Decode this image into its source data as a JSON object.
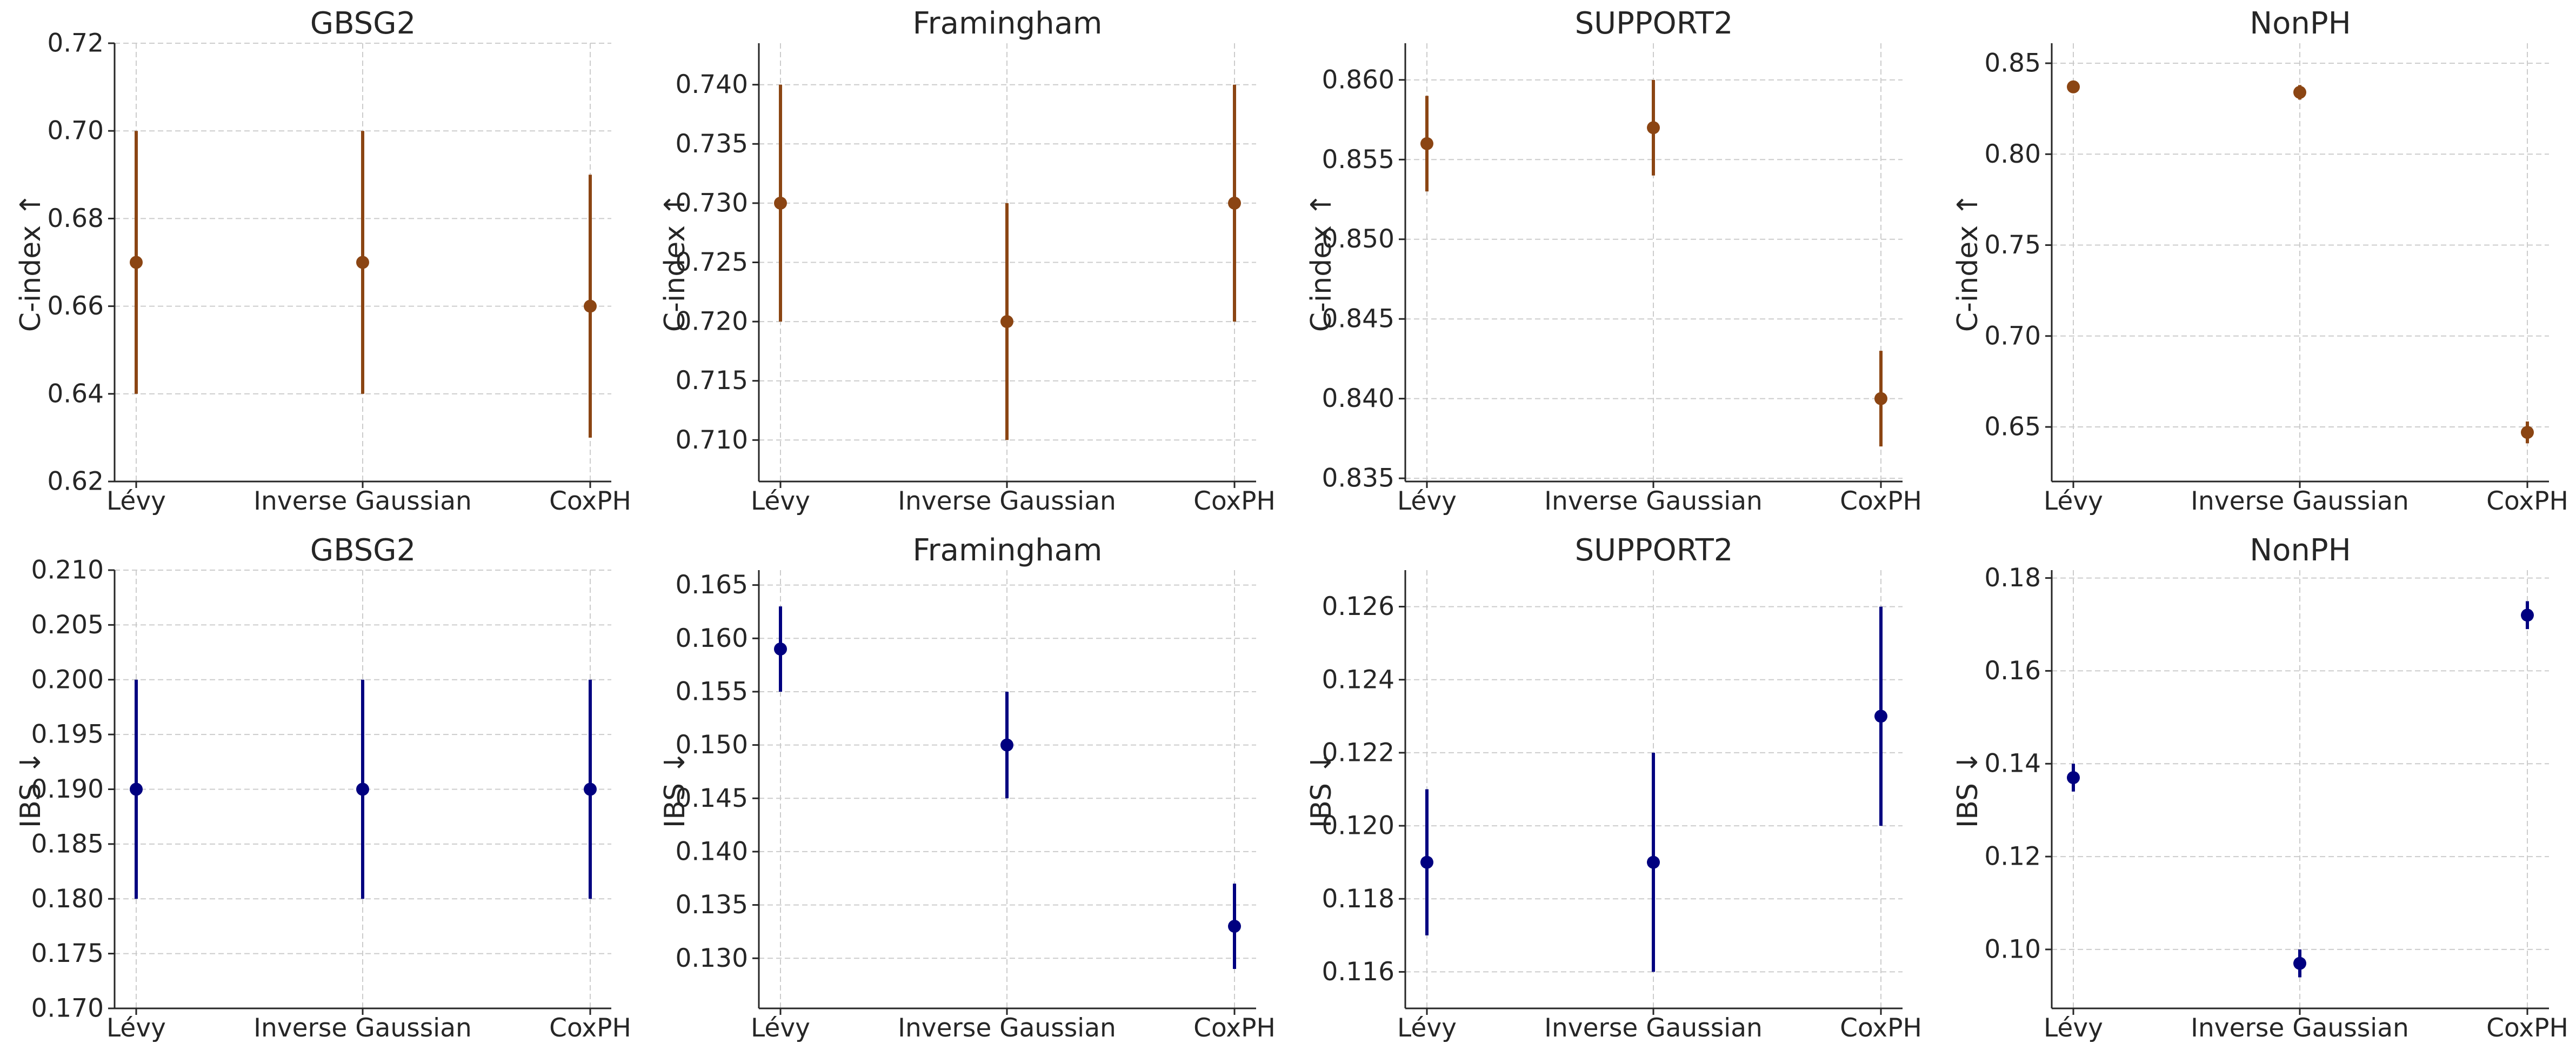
{
  "colors": {
    "cindex": "#8B4513",
    "ibs": "#000080",
    "grid": "#cccccc",
    "axis": "#262626"
  },
  "chart_data": [
    {
      "id": "cindex-gbsg2",
      "type": "errorbar",
      "title": "GBSG2",
      "ylabel": "C-index ↑",
      "xlabel": "",
      "series_color": "cindex",
      "categories": [
        "Lévy",
        "Inverse Gaussian",
        "CoxPH"
      ],
      "values": [
        0.67,
        0.67,
        0.66
      ],
      "lower": [
        0.64,
        0.64,
        0.63
      ],
      "upper": [
        0.7,
        0.7,
        0.69
      ],
      "ylim": [
        0.62,
        0.72
      ],
      "yticks": [
        "0.62",
        "0.64",
        "0.66",
        "0.68",
        "0.70",
        "0.72"
      ],
      "grid": true
    },
    {
      "id": "cindex-framingham",
      "type": "errorbar",
      "title": "Framingham",
      "ylabel": "C-index ↑",
      "xlabel": "",
      "series_color": "cindex",
      "categories": [
        "Lévy",
        "Inverse Gaussian",
        "CoxPH"
      ],
      "values": [
        0.73,
        0.72,
        0.73
      ],
      "lower": [
        0.72,
        0.71,
        0.72
      ],
      "upper": [
        0.74,
        0.73,
        0.74
      ],
      "ylim": [
        0.7065,
        0.7435
      ],
      "yticks": [
        "0.710",
        "0.715",
        "0.720",
        "0.725",
        "0.730",
        "0.735",
        "0.740"
      ],
      "grid": true
    },
    {
      "id": "cindex-support2",
      "type": "errorbar",
      "title": "SUPPORT2",
      "ylabel": "C-index ↑",
      "xlabel": "",
      "series_color": "cindex",
      "categories": [
        "Lévy",
        "Inverse Gaussian",
        "CoxPH"
      ],
      "values": [
        0.856,
        0.857,
        0.84
      ],
      "lower": [
        0.853,
        0.854,
        0.837
      ],
      "upper": [
        0.859,
        0.86,
        0.843
      ],
      "ylim": [
        0.8348,
        0.8623
      ],
      "yticks": [
        "0.835",
        "0.840",
        "0.845",
        "0.850",
        "0.855",
        "0.860"
      ],
      "grid": true
    },
    {
      "id": "cindex-nonph",
      "type": "errorbar",
      "title": "NonPH",
      "ylabel": "C-index ↑",
      "xlabel": "",
      "series_color": "cindex",
      "categories": [
        "Lévy",
        "Inverse Gaussian",
        "CoxPH"
      ],
      "values": [
        0.837,
        0.834,
        0.647
      ],
      "lower": [
        0.834,
        0.83,
        0.641
      ],
      "upper": [
        0.84,
        0.838,
        0.653
      ],
      "ylim": [
        0.62,
        0.861
      ],
      "yticks": [
        "0.65",
        "0.70",
        "0.75",
        "0.80",
        "0.85"
      ],
      "grid": true
    },
    {
      "id": "ibs-gbsg2",
      "type": "errorbar",
      "title": "GBSG2",
      "ylabel": "IBS ↓",
      "xlabel": "",
      "series_color": "ibs",
      "categories": [
        "Lévy",
        "Inverse Gaussian",
        "CoxPH"
      ],
      "values": [
        0.19,
        0.19,
        0.19
      ],
      "lower": [
        0.18,
        0.18,
        0.18
      ],
      "upper": [
        0.2,
        0.2,
        0.2
      ],
      "ylim": [
        0.17,
        0.21
      ],
      "yticks": [
        "0.170",
        "0.175",
        "0.180",
        "0.185",
        "0.190",
        "0.195",
        "0.200",
        "0.205",
        "0.210"
      ],
      "grid": true
    },
    {
      "id": "ibs-framingham",
      "type": "errorbar",
      "title": "Framingham",
      "ylabel": "IBS ↓",
      "xlabel": "",
      "series_color": "ibs",
      "categories": [
        "Lévy",
        "Inverse Gaussian",
        "CoxPH"
      ],
      "values": [
        0.159,
        0.15,
        0.133
      ],
      "lower": [
        0.155,
        0.145,
        0.129
      ],
      "upper": [
        0.163,
        0.155,
        0.137
      ],
      "ylim": [
        0.1253,
        0.1664
      ],
      "yticks": [
        "0.130",
        "0.135",
        "0.140",
        "0.145",
        "0.150",
        "0.155",
        "0.160",
        "0.165"
      ],
      "grid": true
    },
    {
      "id": "ibs-support2",
      "type": "errorbar",
      "title": "SUPPORT2",
      "ylabel": "IBS ↓",
      "xlabel": "",
      "series_color": "ibs",
      "categories": [
        "Lévy",
        "Inverse Gaussian",
        "CoxPH"
      ],
      "values": [
        0.119,
        0.119,
        0.123
      ],
      "lower": [
        0.117,
        0.116,
        0.12
      ],
      "upper": [
        0.121,
        0.122,
        0.126
      ],
      "ylim": [
        0.115,
        0.127
      ],
      "yticks": [
        "0.116",
        "0.118",
        "0.120",
        "0.122",
        "0.124",
        "0.126"
      ],
      "grid": true
    },
    {
      "id": "ibs-nonph",
      "type": "errorbar",
      "title": "NonPH",
      "ylabel": "IBS ↓",
      "xlabel": "",
      "series_color": "ibs",
      "categories": [
        "Lévy",
        "Inverse Gaussian",
        "CoxPH"
      ],
      "values": [
        0.137,
        0.097,
        0.172
      ],
      "lower": [
        0.134,
        0.094,
        0.169
      ],
      "upper": [
        0.14,
        0.1,
        0.175
      ],
      "ylim": [
        0.0873,
        0.1817
      ],
      "yticks": [
        "0.10",
        "0.12",
        "0.14",
        "0.16",
        "0.18"
      ],
      "grid": true
    }
  ]
}
